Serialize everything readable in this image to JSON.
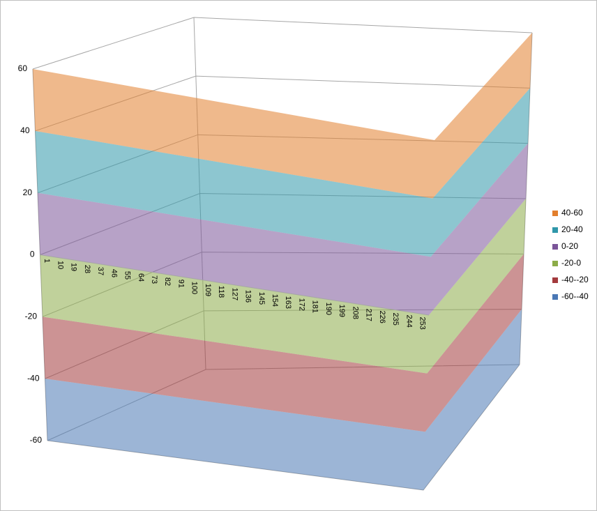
{
  "chart_data": {
    "type": "surface",
    "categories": [
      "1",
      "10",
      "19",
      "28",
      "37",
      "46",
      "55",
      "64",
      "73",
      "82",
      "91",
      "100",
      "109",
      "118",
      "127",
      "136",
      "145",
      "154",
      "163",
      "172",
      "181",
      "190",
      "199",
      "208",
      "217",
      "226",
      "235",
      "244",
      "253"
    ],
    "ylim": [
      -60,
      60
    ],
    "yticks": [
      60,
      40,
      20,
      0,
      -20,
      -40,
      -60
    ],
    "grid": true,
    "bands": [
      {
        "label": "40-60",
        "range": [
          40,
          60
        ],
        "color": "#e27f2d"
      },
      {
        "label": "20-40",
        "range": [
          20,
          40
        ],
        "color": "#2f97aa"
      },
      {
        "label": "0-20",
        "range": [
          0,
          20
        ],
        "color": "#7b5599"
      },
      {
        "label": "-20-0",
        "range": [
          -20,
          0
        ],
        "color": "#8cac48"
      },
      {
        "label": "-40--20",
        "range": [
          -40,
          -20
        ],
        "color": "#a33a3d"
      },
      {
        "label": "-60--40",
        "range": [
          -60,
          -40
        ],
        "color": "#4a78b5"
      }
    ]
  }
}
